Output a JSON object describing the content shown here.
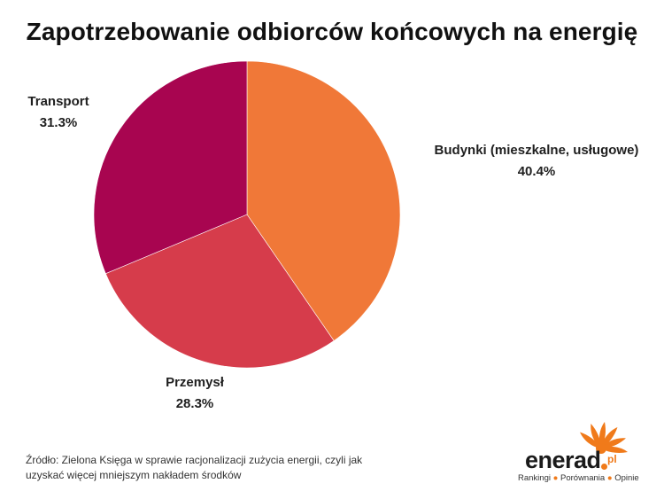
{
  "chart_data": {
    "type": "pie",
    "title": "Zapotrzebowanie odbiorców końcowych na energię",
    "categories": [
      "Budynki (mieszkalne, usługowe)",
      "Przemysł",
      "Transport"
    ],
    "values": [
      40.4,
      28.3,
      31.3
    ],
    "value_labels": [
      "40.4%",
      "28.3%",
      "31.3%"
    ],
    "colors": [
      "#f07838",
      "#d63c4b",
      "#a80550"
    ],
    "start_angle_deg": 0,
    "direction": "clockwise"
  },
  "footer": {
    "source_line1": "Źródło: Zielona Księga w sprawie racjonalizacji zużycia energii, czyli jak",
    "source_line2": "uzyskać więcej mniejszym nakładem środków"
  },
  "logo": {
    "word": "enerad",
    "suffix": "pl",
    "tag1": "Rankingi",
    "tag2": "Porównania",
    "tag3": "Opinie",
    "tag_sep": "●",
    "brand_color": "#f07a1a"
  }
}
